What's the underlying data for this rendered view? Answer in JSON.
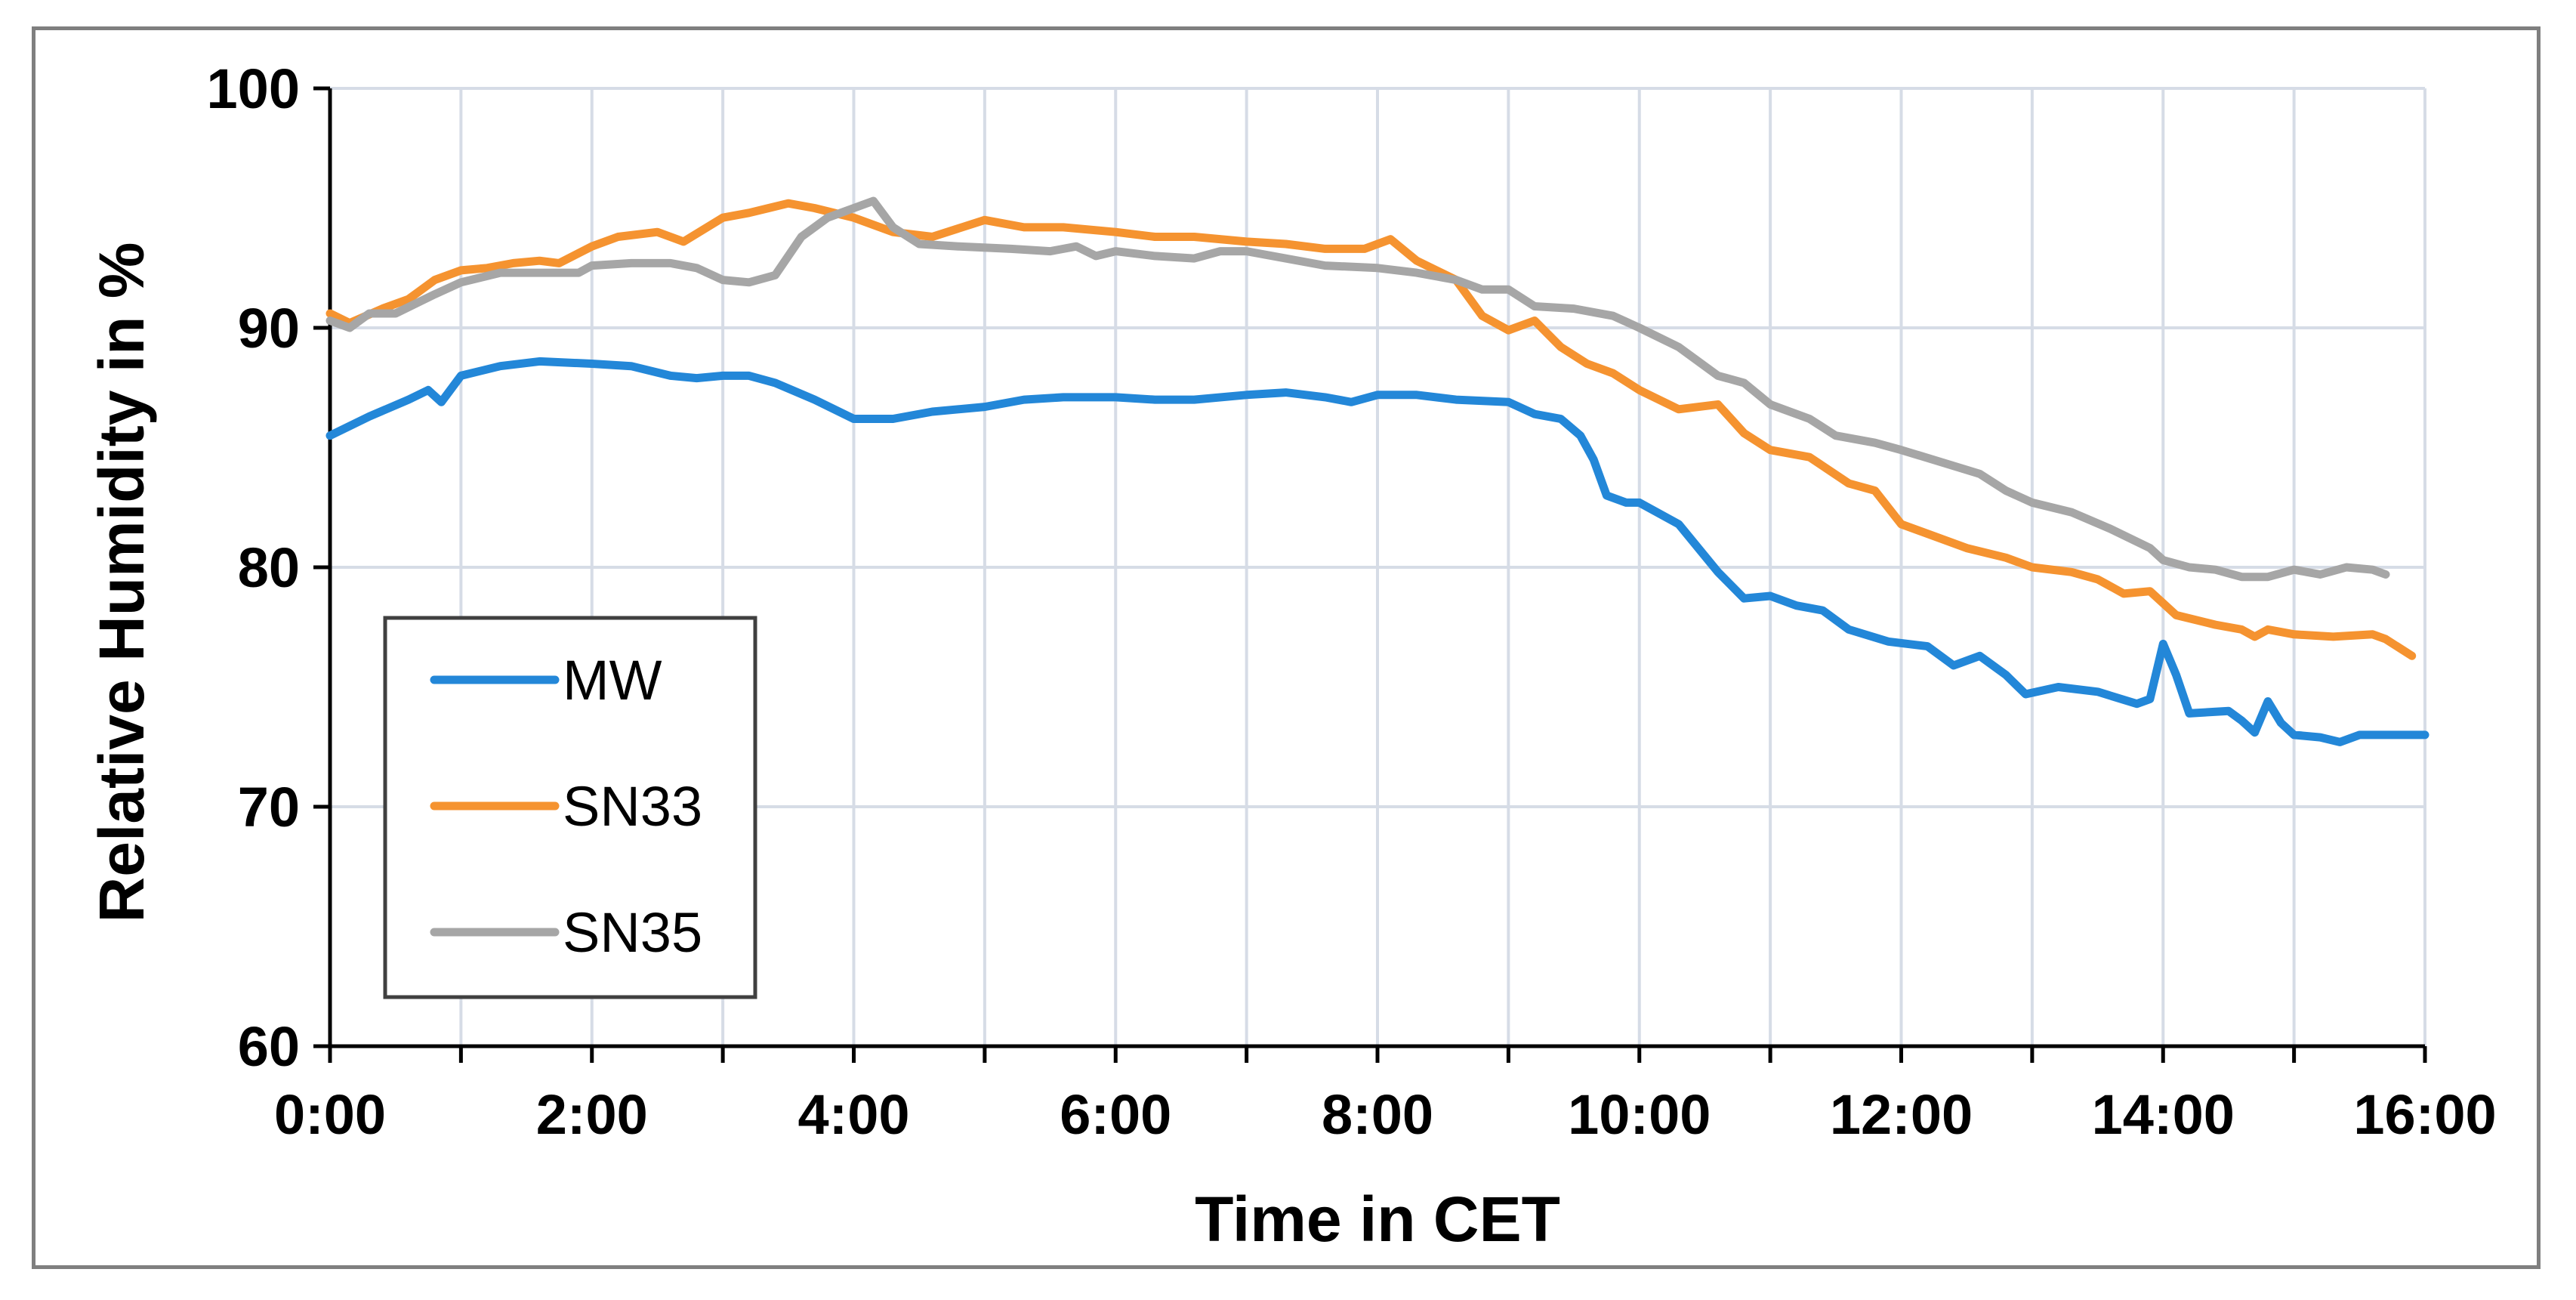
{
  "chart_data": {
    "type": "line",
    "title": "",
    "xlabel": "Time in CET",
    "ylabel": "Relative Humidity in %",
    "xlim": [
      0,
      16
    ],
    "ylim": [
      60,
      100
    ],
    "x_ticks": [
      "0:00",
      "2:00",
      "4:00",
      "6:00",
      "8:00",
      "10:00",
      "12:00",
      "14:00",
      "16:00"
    ],
    "x_tick_values": [
      0,
      2,
      4,
      6,
      8,
      10,
      12,
      14,
      16
    ],
    "y_ticks": [
      "60",
      "70",
      "80",
      "90",
      "100"
    ],
    "y_tick_values": [
      60,
      70,
      80,
      90,
      100
    ],
    "grid": true,
    "legend_position": "lower-left",
    "series": [
      {
        "name": "MW",
        "color": "#2387d8",
        "points": [
          [
            0,
            85.5
          ],
          [
            0.3,
            86.3
          ],
          [
            0.6,
            87.0
          ],
          [
            0.75,
            87.4
          ],
          [
            0.85,
            86.9
          ],
          [
            1.0,
            88.0
          ],
          [
            1.3,
            88.4
          ],
          [
            1.6,
            88.6
          ],
          [
            2.0,
            88.5
          ],
          [
            2.3,
            88.4
          ],
          [
            2.6,
            88.0
          ],
          [
            2.8,
            87.9
          ],
          [
            3.0,
            88.0
          ],
          [
            3.2,
            88.0
          ],
          [
            3.4,
            87.7
          ],
          [
            3.7,
            87.0
          ],
          [
            4.0,
            86.2
          ],
          [
            4.3,
            86.2
          ],
          [
            4.6,
            86.5
          ],
          [
            5.0,
            86.7
          ],
          [
            5.3,
            87.0
          ],
          [
            5.6,
            87.1
          ],
          [
            6.0,
            87.1
          ],
          [
            6.3,
            87.0
          ],
          [
            6.6,
            87.0
          ],
          [
            7.0,
            87.2
          ],
          [
            7.3,
            87.3
          ],
          [
            7.6,
            87.1
          ],
          [
            7.8,
            86.9
          ],
          [
            8.0,
            87.2
          ],
          [
            8.3,
            87.2
          ],
          [
            8.6,
            87.0
          ],
          [
            9.0,
            86.9
          ],
          [
            9.2,
            86.4
          ],
          [
            9.4,
            86.2
          ],
          [
            9.55,
            85.5
          ],
          [
            9.65,
            84.5
          ],
          [
            9.75,
            83.0
          ],
          [
            9.9,
            82.7
          ],
          [
            10.0,
            82.7
          ],
          [
            10.3,
            81.8
          ],
          [
            10.6,
            79.8
          ],
          [
            10.8,
            78.7
          ],
          [
            11.0,
            78.8
          ],
          [
            11.2,
            78.4
          ],
          [
            11.4,
            78.2
          ],
          [
            11.6,
            77.4
          ],
          [
            11.9,
            76.9
          ],
          [
            12.2,
            76.7
          ],
          [
            12.4,
            75.9
          ],
          [
            12.6,
            76.3
          ],
          [
            12.8,
            75.5
          ],
          [
            12.95,
            74.7
          ],
          [
            13.2,
            75.0
          ],
          [
            13.5,
            74.8
          ],
          [
            13.8,
            74.3
          ],
          [
            13.9,
            74.5
          ],
          [
            14.0,
            76.8
          ],
          [
            14.1,
            75.5
          ],
          [
            14.2,
            73.9
          ],
          [
            14.5,
            74.0
          ],
          [
            14.6,
            73.6
          ],
          [
            14.7,
            73.1
          ],
          [
            14.8,
            74.4
          ],
          [
            14.9,
            73.5
          ],
          [
            15.0,
            73.0
          ],
          [
            15.2,
            72.9
          ],
          [
            15.35,
            72.7
          ],
          [
            15.5,
            73.0
          ],
          [
            16.0,
            73.0
          ]
        ]
      },
      {
        "name": "SN33",
        "color": "#f59330",
        "points": [
          [
            0,
            90.6
          ],
          [
            0.15,
            90.2
          ],
          [
            0.4,
            90.8
          ],
          [
            0.6,
            91.2
          ],
          [
            0.8,
            92.0
          ],
          [
            1.0,
            92.4
          ],
          [
            1.2,
            92.5
          ],
          [
            1.4,
            92.7
          ],
          [
            1.6,
            92.8
          ],
          [
            1.75,
            92.7
          ],
          [
            2.0,
            93.4
          ],
          [
            2.2,
            93.8
          ],
          [
            2.5,
            94.0
          ],
          [
            2.7,
            93.6
          ],
          [
            3.0,
            94.6
          ],
          [
            3.2,
            94.8
          ],
          [
            3.5,
            95.2
          ],
          [
            3.7,
            95.0
          ],
          [
            4.0,
            94.6
          ],
          [
            4.3,
            94.0
          ],
          [
            4.6,
            93.8
          ],
          [
            5.0,
            94.5
          ],
          [
            5.3,
            94.2
          ],
          [
            5.6,
            94.2
          ],
          [
            6.0,
            94.0
          ],
          [
            6.3,
            93.8
          ],
          [
            6.6,
            93.8
          ],
          [
            7.0,
            93.6
          ],
          [
            7.3,
            93.5
          ],
          [
            7.6,
            93.3
          ],
          [
            7.9,
            93.3
          ],
          [
            8.1,
            93.7
          ],
          [
            8.3,
            92.8
          ],
          [
            8.6,
            92.0
          ],
          [
            8.8,
            90.5
          ],
          [
            9.0,
            89.9
          ],
          [
            9.2,
            90.3
          ],
          [
            9.4,
            89.2
          ],
          [
            9.6,
            88.5
          ],
          [
            9.8,
            88.1
          ],
          [
            10.0,
            87.4
          ],
          [
            10.3,
            86.6
          ],
          [
            10.6,
            86.8
          ],
          [
            10.8,
            85.6
          ],
          [
            11.0,
            84.9
          ],
          [
            11.3,
            84.6
          ],
          [
            11.6,
            83.5
          ],
          [
            11.8,
            83.2
          ],
          [
            12.0,
            81.8
          ],
          [
            12.2,
            81.4
          ],
          [
            12.5,
            80.8
          ],
          [
            12.8,
            80.4
          ],
          [
            13.0,
            80.0
          ],
          [
            13.3,
            79.8
          ],
          [
            13.5,
            79.5
          ],
          [
            13.7,
            78.9
          ],
          [
            13.9,
            79.0
          ],
          [
            14.1,
            78.0
          ],
          [
            14.4,
            77.6
          ],
          [
            14.6,
            77.4
          ],
          [
            14.7,
            77.1
          ],
          [
            14.8,
            77.4
          ],
          [
            15.0,
            77.2
          ],
          [
            15.3,
            77.1
          ],
          [
            15.6,
            77.2
          ],
          [
            15.7,
            77.0
          ],
          [
            15.9,
            76.3
          ]
        ]
      },
      {
        "name": "SN35",
        "color": "#a6a6a6",
        "points": [
          [
            0,
            90.3
          ],
          [
            0.15,
            90.0
          ],
          [
            0.3,
            90.6
          ],
          [
            0.5,
            90.6
          ],
          [
            0.8,
            91.4
          ],
          [
            1.0,
            91.9
          ],
          [
            1.3,
            92.3
          ],
          [
            1.6,
            92.3
          ],
          [
            1.9,
            92.3
          ],
          [
            2.0,
            92.6
          ],
          [
            2.3,
            92.7
          ],
          [
            2.6,
            92.7
          ],
          [
            2.8,
            92.5
          ],
          [
            3.0,
            92.0
          ],
          [
            3.2,
            91.9
          ],
          [
            3.4,
            92.2
          ],
          [
            3.6,
            93.8
          ],
          [
            3.8,
            94.6
          ],
          [
            4.0,
            95.0
          ],
          [
            4.15,
            95.3
          ],
          [
            4.3,
            94.2
          ],
          [
            4.5,
            93.5
          ],
          [
            4.8,
            93.4
          ],
          [
            5.2,
            93.3
          ],
          [
            5.5,
            93.2
          ],
          [
            5.7,
            93.4
          ],
          [
            5.85,
            93.0
          ],
          [
            6.0,
            93.2
          ],
          [
            6.3,
            93.0
          ],
          [
            6.6,
            92.9
          ],
          [
            6.8,
            93.2
          ],
          [
            7.0,
            93.2
          ],
          [
            7.3,
            92.9
          ],
          [
            7.6,
            92.6
          ],
          [
            8.0,
            92.5
          ],
          [
            8.3,
            92.3
          ],
          [
            8.6,
            92.0
          ],
          [
            8.8,
            91.6
          ],
          [
            9.0,
            91.6
          ],
          [
            9.2,
            90.9
          ],
          [
            9.5,
            90.8
          ],
          [
            9.8,
            90.5
          ],
          [
            10.0,
            90.0
          ],
          [
            10.3,
            89.2
          ],
          [
            10.6,
            88.0
          ],
          [
            10.8,
            87.7
          ],
          [
            11.0,
            86.8
          ],
          [
            11.3,
            86.2
          ],
          [
            11.5,
            85.5
          ],
          [
            11.8,
            85.2
          ],
          [
            12.0,
            84.9
          ],
          [
            12.3,
            84.4
          ],
          [
            12.6,
            83.9
          ],
          [
            12.8,
            83.2
          ],
          [
            13.0,
            82.7
          ],
          [
            13.3,
            82.3
          ],
          [
            13.6,
            81.6
          ],
          [
            13.9,
            80.8
          ],
          [
            14.0,
            80.3
          ],
          [
            14.2,
            80.0
          ],
          [
            14.4,
            79.9
          ],
          [
            14.6,
            79.6
          ],
          [
            14.8,
            79.6
          ],
          [
            15.0,
            79.9
          ],
          [
            15.2,
            79.7
          ],
          [
            15.4,
            80.0
          ],
          [
            15.6,
            79.9
          ],
          [
            15.7,
            79.7
          ]
        ]
      }
    ]
  }
}
